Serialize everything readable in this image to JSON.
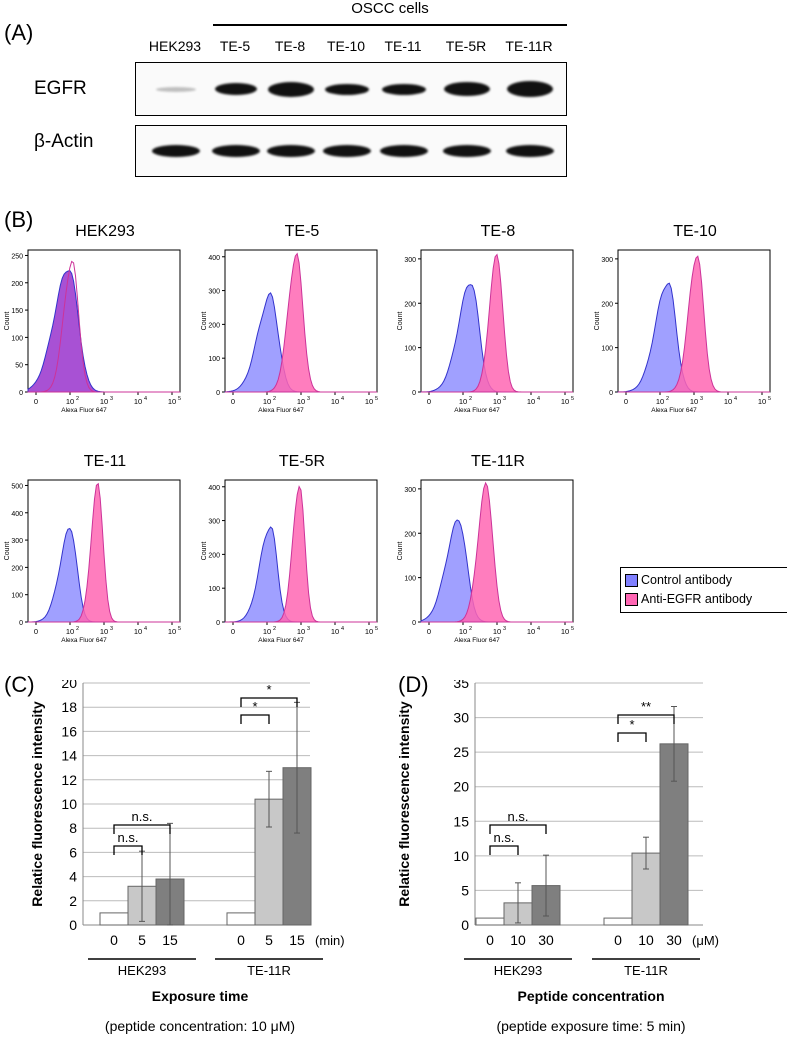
{
  "panel_labels": {
    "a": "(A)",
    "b": "(B)",
    "c": "(C)",
    "d": "(D)"
  },
  "western_blot": {
    "group_label": "OSCC cells",
    "lanes": [
      "HEK293",
      "TE-5",
      "TE-8",
      "TE-10",
      "TE-11",
      "TE-5R",
      "TE-11R"
    ],
    "egfr_label": "EGFR",
    "actin_label": "β-Actin"
  },
  "flow": {
    "panels": [
      {
        "title": "HEK293",
        "yticks": [
          "0",
          "50",
          "100",
          "150",
          "200",
          "250"
        ]
      },
      {
        "title": "TE-5",
        "yticks": [
          "0",
          "100",
          "200",
          "300",
          "400"
        ]
      },
      {
        "title": "TE-8",
        "yticks": [
          "0",
          "100",
          "200",
          "300"
        ]
      },
      {
        "title": "TE-10",
        "yticks": [
          "0",
          "100",
          "200",
          "300"
        ]
      },
      {
        "title": "TE-11",
        "yticks": [
          "0",
          "100",
          "200",
          "300",
          "400",
          "500"
        ]
      },
      {
        "title": "TE-5R",
        "yticks": [
          "0",
          "100",
          "200",
          "300",
          "400"
        ]
      },
      {
        "title": "TE-11R",
        "yticks": [
          "0",
          "100",
          "200",
          "300"
        ]
      }
    ],
    "ylabel": "Count",
    "xlabel": "Alexa Fluor 647",
    "xticks": [
      "0",
      "10",
      "10",
      "10",
      "10"
    ],
    "xexps": [
      "",
      "2",
      "3",
      "4",
      "5"
    ],
    "legend": [
      "Control antibody",
      "Anti-EGFR antibody"
    ],
    "colors": {
      "control": "#8080ff",
      "anti": "#ff66b3",
      "overlap": "#9933cc"
    }
  },
  "chart_data": [
    {
      "type": "bar",
      "panel": "C",
      "ylabel": "Relatice fluorescence intensity",
      "ylim": [
        0,
        20
      ],
      "yticks": [
        "0",
        "2",
        "4",
        "6",
        "8",
        "10",
        "12",
        "14",
        "16",
        "18",
        "20"
      ],
      "groups": [
        "HEK293",
        "TE-11R"
      ],
      "categories": [
        "0",
        "5",
        "15"
      ],
      "unit": "(min)",
      "series": [
        {
          "group": "HEK293",
          "values": [
            1.0,
            3.2,
            3.8
          ],
          "errors": [
            0,
            2.9,
            4.6
          ]
        },
        {
          "group": "TE-11R",
          "values": [
            1.0,
            10.4,
            13.0
          ],
          "errors": [
            0,
            2.3,
            5.4
          ]
        }
      ],
      "significance": [
        {
          "group": "HEK293",
          "label": "n.s."
        },
        {
          "group": "HEK293",
          "label": "n.s."
        },
        {
          "group": "TE-11R",
          "label": "*"
        },
        {
          "group": "TE-11R",
          "label": "*"
        }
      ],
      "xlabel": "Exposure time",
      "note": "(peptide concentration: 10 μM)"
    },
    {
      "type": "bar",
      "panel": "D",
      "ylabel": "Relatice fluorescence intensity",
      "ylim": [
        0,
        35
      ],
      "yticks": [
        "0",
        "5",
        "10",
        "15",
        "20",
        "25",
        "30",
        "35"
      ],
      "groups": [
        "HEK293",
        "TE-11R"
      ],
      "categories": [
        "0",
        "10",
        "30"
      ],
      "unit": "(μM)",
      "series": [
        {
          "group": "HEK293",
          "values": [
            1.0,
            3.2,
            5.7
          ],
          "errors": [
            0,
            2.9,
            4.4
          ]
        },
        {
          "group": "TE-11R",
          "values": [
            1.0,
            10.4,
            26.2
          ],
          "errors": [
            0,
            2.3,
            5.4
          ]
        }
      ],
      "significance": [
        {
          "group": "HEK293",
          "label": "n.s."
        },
        {
          "group": "HEK293",
          "label": "n.s."
        },
        {
          "group": "TE-11R",
          "label": "*"
        },
        {
          "group": "TE-11R",
          "label": "**"
        }
      ],
      "xlabel": "Peptide concentration",
      "note": "(peptide exposure time: 5 min)"
    }
  ]
}
